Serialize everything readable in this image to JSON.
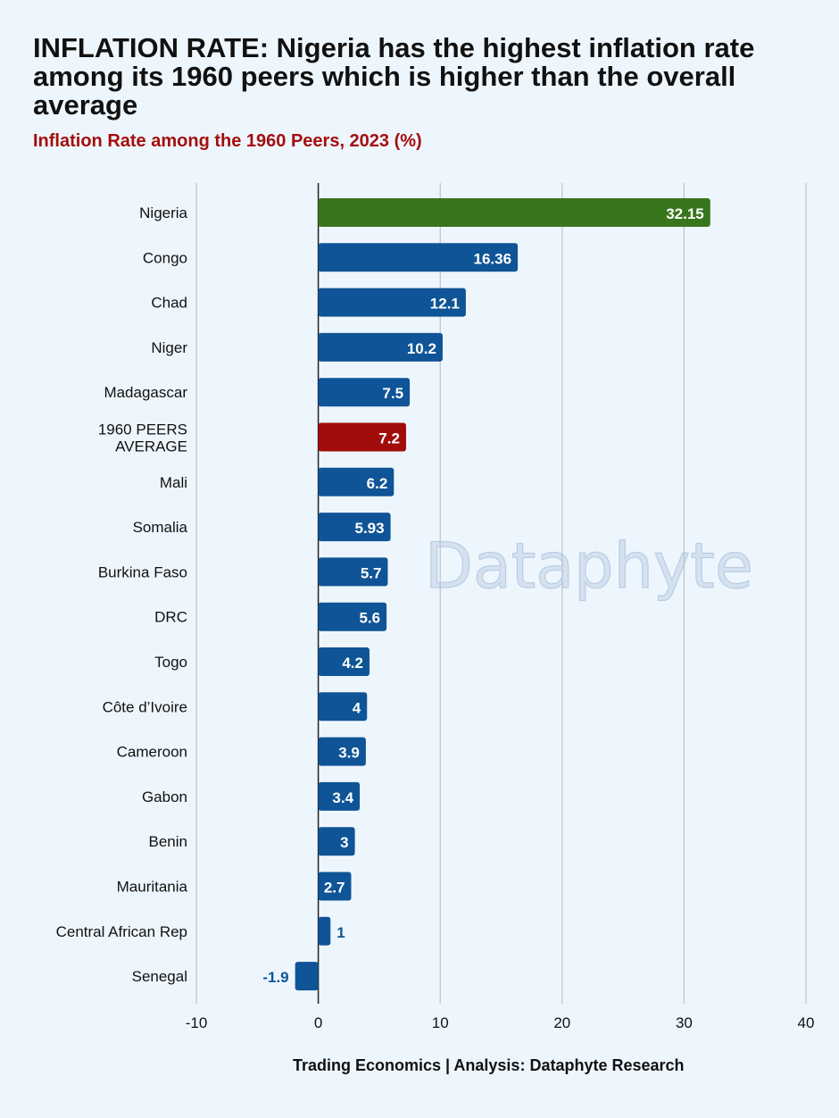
{
  "title": "INFLATION RATE: Nigeria has the highest inflation rate among its 1960 peers which is higher than the overall average",
  "subtitle": "Inflation Rate among the 1960 Peers, 2023 (%)",
  "watermark": "Dataphyte",
  "source": "Trading Economics | Analysis: Dataphyte Research",
  "colors": {
    "highlight": "#38761d",
    "average": "#a30c0c",
    "default": "#0f5496",
    "title_accent": "#a50d0d",
    "grid": "#b9c3cc"
  },
  "chart_data": {
    "type": "bar",
    "orientation": "horizontal",
    "categories": [
      "Nigeria",
      "Congo",
      "Chad",
      "Niger",
      "Madagascar",
      "1960 PEERS AVERAGE",
      "Mali",
      "Somalia",
      "Burkina Faso",
      "DRC",
      "Togo",
      "Côte d’Ivoire",
      "Cameroon",
      "Gabon",
      "Benin",
      "Mauritania",
      "Central African Rep",
      "Senegal"
    ],
    "values": [
      32.15,
      16.36,
      12.1,
      10.2,
      7.5,
      7.2,
      6.2,
      5.93,
      5.7,
      5.6,
      4.2,
      4,
      3.9,
      3.4,
      3,
      2.7,
      1,
      -1.9
    ],
    "value_labels": [
      "32.15",
      "16.36",
      "12.1",
      "10.2",
      "7.5",
      "7.2",
      "6.2",
      "5.93",
      "5.7",
      "5.6",
      "4.2",
      "4",
      "3.9",
      "3.4",
      "3",
      "2.7",
      "1",
      "-1.9"
    ],
    "bar_colors": [
      "highlight",
      "default",
      "default",
      "default",
      "default",
      "average",
      "default",
      "default",
      "default",
      "default",
      "default",
      "default",
      "default",
      "default",
      "default",
      "default",
      "default",
      "default"
    ],
    "xlim": [
      -10,
      40
    ],
    "xticks": [
      -10,
      0,
      10,
      20,
      30,
      40
    ],
    "xlabel": "",
    "ylabel": "",
    "grid": "vertical"
  }
}
